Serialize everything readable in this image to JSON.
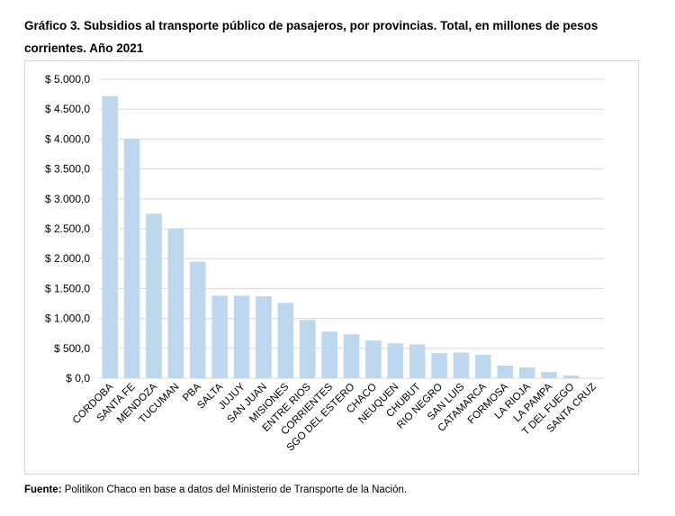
{
  "chart_data": {
    "type": "bar",
    "title": "Gráfico 3. Subsidios al transporte público de pasajeros, por provincias. Total, en millones de pesos corrientes. Año 2021",
    "categories": [
      "CORDOBA",
      "SANTA FE",
      "MENDOZA",
      "TUCUMAN",
      "PBA",
      "SALTA",
      "JUJUY",
      "SAN JUAN",
      "MISIONES",
      "ENTRE RIOS",
      "CORRIENTES",
      "SGO DEL ESTERO",
      "CHACO",
      "NEUQUEN",
      "CHUBUT",
      "RIO NEGRO",
      "SAN LUIS",
      "CATAMARCA",
      "FORMOSA",
      "LA RIOJA",
      "LA PAMPA",
      "T DEL FUEGO",
      "SANTA CRUZ"
    ],
    "values": [
      4715,
      4000,
      2750,
      2500,
      1950,
      1380,
      1380,
      1370,
      1260,
      975,
      780,
      735,
      630,
      585,
      565,
      420,
      430,
      390,
      210,
      180,
      105,
      45,
      5
    ],
    "color": "#bdd7ee",
    "ylim": [
      0,
      5000
    ],
    "yticks": [
      {
        "value": 0,
        "label": "$ 0,0"
      },
      {
        "value": 500,
        "label": "$ 500,0"
      },
      {
        "value": 1000,
        "label": "$ 1.000,0"
      },
      {
        "value": 1500,
        "label": "$ 1.500,0"
      },
      {
        "value": 2000,
        "label": "$ 2.000,0"
      },
      {
        "value": 2500,
        "label": "$ 2.500,0"
      },
      {
        "value": 3000,
        "label": "$ 3.000,0"
      },
      {
        "value": 3500,
        "label": "$ 3.500,0"
      },
      {
        "value": 4000,
        "label": "$ 4.000,0"
      },
      {
        "value": 4500,
        "label": "$ 4.500,0"
      },
      {
        "value": 5000,
        "label": "$ 5.000,0"
      }
    ],
    "grid": true,
    "source_label": "Fuente:",
    "source": "Politikon Chaco en base a datos del Ministerio de Transporte de la Nación."
  }
}
